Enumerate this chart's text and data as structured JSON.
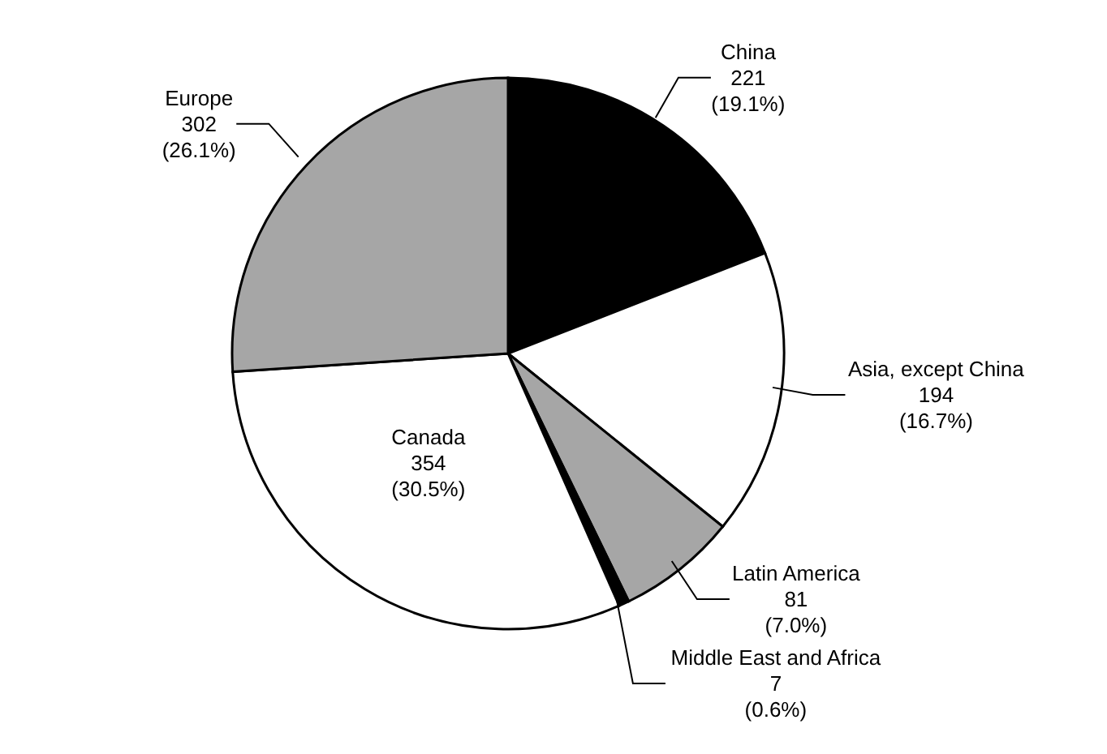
{
  "chart_data": {
    "type": "pie",
    "categories": [
      "China",
      "Asia, except China",
      "Latin America",
      "Middle East and Africa",
      "Canada",
      "Europe"
    ],
    "values": [
      221,
      194,
      81,
      7,
      354,
      302
    ],
    "colors": [
      "#000000",
      "#ffffff",
      "#a6a6a6",
      "#000000",
      "#ffffff",
      "#a6a6a6"
    ],
    "value_labels": [
      "221 (19.1%)",
      "194 (16.7%)",
      "81 (7.0%)",
      "7 (0.6%)",
      "354 (30.5%)",
      "302 (26.1%)"
    ]
  }
}
